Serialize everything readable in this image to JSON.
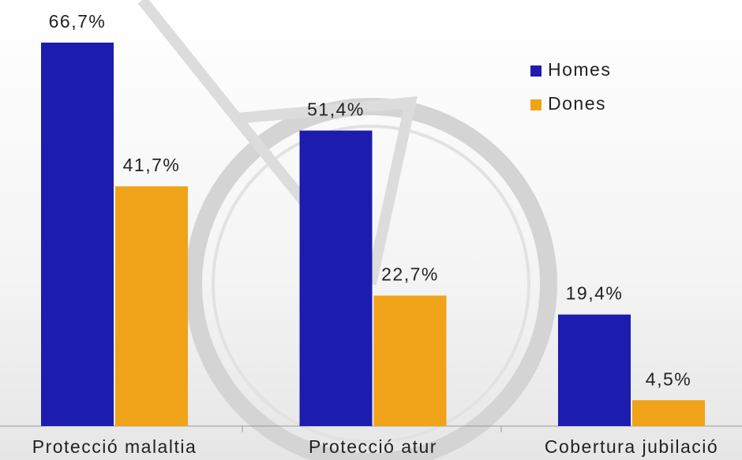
{
  "chart_data": {
    "type": "bar",
    "categories": [
      "Protecció malaltia",
      "Protecció atur",
      "Cobertura jubilació"
    ],
    "series": [
      {
        "name": "Homes",
        "color": "#1c1cae",
        "values": [
          66.7,
          51.4,
          19.4
        ],
        "value_labels": [
          "66,7%",
          "51,4%",
          "19,4%"
        ]
      },
      {
        "name": "Dones",
        "color": "#f0a318",
        "values": [
          41.7,
          22.7,
          4.5
        ],
        "value_labels": [
          "41,7%",
          "22,7%",
          "4,5%"
        ]
      }
    ],
    "legend": "top-right"
  }
}
